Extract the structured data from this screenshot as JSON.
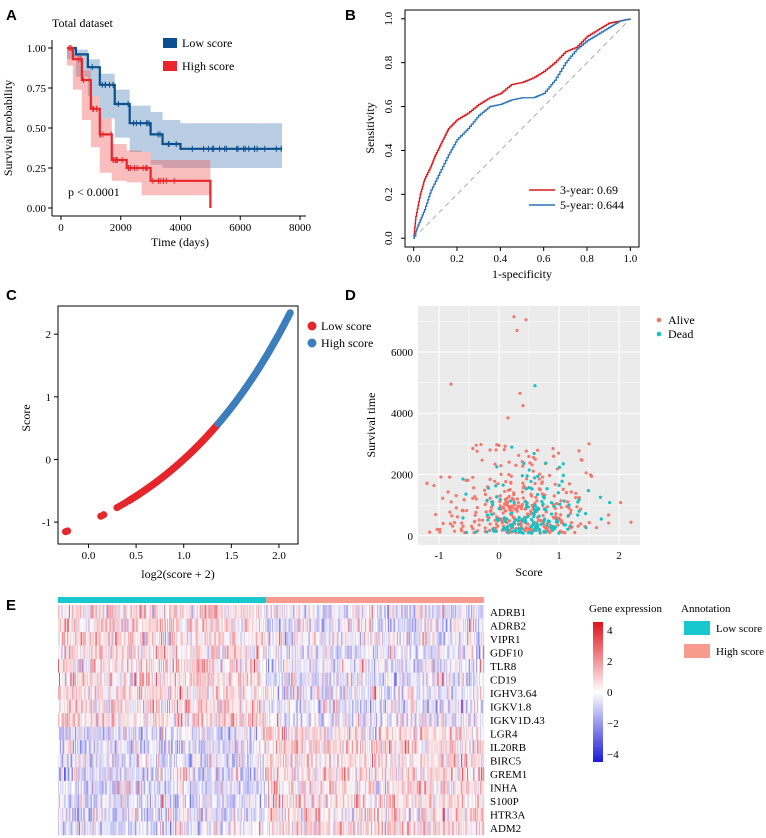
{
  "colors": {
    "low_blue": "#0b4f8f",
    "high_red": "#e8262a",
    "roc_red": "#d7191c",
    "roc_blue": "#2a74b8",
    "pt_red": "#e4272b",
    "pt_blue": "#3d7ebd",
    "alive": "#f4776b",
    "dead": "#18c0c4",
    "ann_low": "#17c9cc",
    "ann_high": "#f79b8f"
  },
  "chart_data": [
    {
      "panel": "A",
      "type": "line",
      "title": "Total dataset",
      "xlabel": "Time (days)",
      "ylabel": "Survival probability",
      "xlim": [
        -300,
        8200
      ],
      "ylim": [
        -0.05,
        1.05
      ],
      "xticks": [
        "0",
        "2000",
        "4000",
        "6000",
        "8000"
      ],
      "yticks": [
        "0.00",
        "0.25",
        "0.50",
        "0.75",
        "1.00"
      ],
      "annotation": "p < 0.0001",
      "series": [
        {
          "name": "Low score",
          "x": [
            200,
            500,
            900,
            1300,
            1800,
            2300,
            3000,
            3400,
            4000,
            5000,
            6000,
            7000,
            7400
          ],
          "y": [
            1.0,
            0.96,
            0.88,
            0.77,
            0.65,
            0.53,
            0.46,
            0.4,
            0.37,
            0.37,
            0.37,
            0.37,
            0.37
          ],
          "ci_upper": [
            1.0,
            0.99,
            0.93,
            0.84,
            0.74,
            0.64,
            0.6,
            0.55,
            0.53,
            0.53,
            0.53,
            0.53,
            0.53
          ],
          "ci_lower": [
            1.0,
            0.93,
            0.82,
            0.7,
            0.56,
            0.44,
            0.35,
            0.27,
            0.25,
            0.25,
            0.25,
            0.25,
            0.25
          ]
        },
        {
          "name": "High score",
          "x": [
            200,
            400,
            700,
            1000,
            1300,
            1700,
            2200,
            2700,
            3000,
            4000,
            5000,
            5000
          ],
          "y": [
            1.0,
            0.93,
            0.8,
            0.62,
            0.46,
            0.3,
            0.25,
            0.25,
            0.17,
            0.17,
            0.17,
            0.0
          ],
          "ci_upper": [
            1.0,
            0.96,
            0.86,
            0.7,
            0.56,
            0.4,
            0.36,
            0.35,
            0.3,
            0.3,
            0.3,
            0.3
          ],
          "ci_lower": [
            1.0,
            0.89,
            0.74,
            0.55,
            0.38,
            0.22,
            0.17,
            0.16,
            0.08,
            0.08,
            0.08,
            0.08
          ]
        }
      ]
    },
    {
      "panel": "B",
      "type": "line",
      "xlabel": "1-specificity",
      "ylabel": "Sensitivity",
      "xlim": [
        -0.04,
        1.04
      ],
      "ylim": [
        -0.04,
        1.04
      ],
      "xticks": [
        "0.0",
        "0.2",
        "0.4",
        "0.6",
        "0.8",
        "1.0"
      ],
      "yticks": [
        "0.0",
        "0.2",
        "0.4",
        "0.6",
        "0.8",
        "1.0"
      ],
      "series": [
        {
          "name": "3-year: 0.69",
          "x": [
            0.0,
            0.01,
            0.03,
            0.05,
            0.08,
            0.1,
            0.13,
            0.16,
            0.2,
            0.25,
            0.3,
            0.35,
            0.4,
            0.45,
            0.5,
            0.55,
            0.6,
            0.65,
            0.7,
            0.75,
            0.8,
            0.85,
            0.9,
            0.95,
            1.0
          ],
          "y": [
            0.0,
            0.1,
            0.2,
            0.27,
            0.33,
            0.38,
            0.44,
            0.5,
            0.54,
            0.57,
            0.61,
            0.64,
            0.66,
            0.7,
            0.71,
            0.73,
            0.76,
            0.8,
            0.85,
            0.87,
            0.92,
            0.95,
            0.98,
            0.99,
            1.0
          ]
        },
        {
          "name": "5-year: 0.644",
          "x": [
            0.0,
            0.02,
            0.05,
            0.08,
            0.12,
            0.16,
            0.2,
            0.25,
            0.3,
            0.35,
            0.4,
            0.45,
            0.5,
            0.55,
            0.6,
            0.65,
            0.7,
            0.75,
            0.8,
            0.85,
            0.9,
            0.95,
            1.0
          ],
          "y": [
            0.0,
            0.06,
            0.13,
            0.22,
            0.3,
            0.38,
            0.45,
            0.5,
            0.56,
            0.6,
            0.61,
            0.63,
            0.64,
            0.64,
            0.66,
            0.72,
            0.8,
            0.86,
            0.9,
            0.93,
            0.96,
            0.99,
            1.0
          ]
        }
      ]
    },
    {
      "panel": "C",
      "type": "scatter",
      "xlabel": "log2(score + 2)",
      "ylabel": "Score",
      "xlim": [
        -0.32,
        2.2
      ],
      "ylim": [
        -1.35,
        2.45
      ],
      "xticks": [
        "0.0",
        "0.5",
        "1.0",
        "1.5",
        "2.0"
      ],
      "yticks": [
        "-1",
        "0",
        "1",
        "2"
      ],
      "series": [
        {
          "name": "Low score",
          "x_range": [
            -0.25,
            1.36
          ]
        },
        {
          "name": "High score",
          "x_range": [
            1.36,
            2.12
          ]
        }
      ]
    },
    {
      "panel": "D",
      "type": "scatter",
      "xlabel": "Score",
      "ylabel": "Survival time",
      "xlim": [
        -1.35,
        2.35
      ],
      "ylim": [
        -300,
        7500
      ],
      "xticks": [
        "-1",
        "0",
        "1",
        "2"
      ],
      "yticks": [
        "0",
        "2000",
        "4000",
        "6000"
      ],
      "series": [
        {
          "name": "Alive",
          "n_points": 330
        },
        {
          "name": "Dead",
          "n_points": 160
        }
      ]
    },
    {
      "panel": "E",
      "type": "heatmap",
      "rows": [
        "ADRB1",
        "ADRB2",
        "VIPR1",
        "GDF10",
        "TLR8",
        "CD19",
        "IGHV3.64",
        "IGKV1.8",
        "IGKV1D.43",
        "LGR4",
        "IL20RB",
        "BIRC5",
        "GREM1",
        "INHA",
        "S100P",
        "HTR3A",
        "ADM2"
      ],
      "columns": 430,
      "low_score_columns": 210,
      "colorbar_title": "Gene expression",
      "colorbar_ticks": [
        "4",
        "2",
        "0",
        "−2",
        "−4"
      ],
      "colorbar_range": [
        -4.5,
        4.5
      ],
      "annotation_title": "Annotation",
      "annotation_levels": [
        "Low score",
        "High score"
      ]
    }
  ]
}
